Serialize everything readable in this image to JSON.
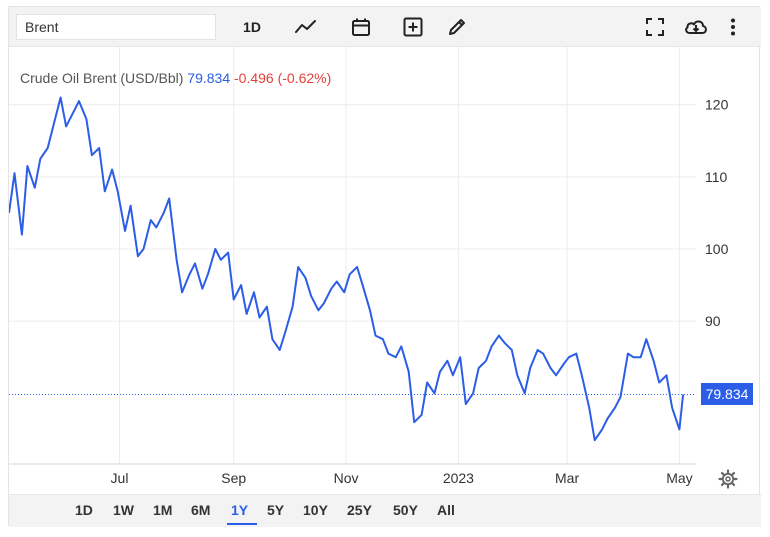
{
  "toolbar": {
    "search_value": "Brent",
    "interval_label": "1D",
    "icons": [
      "line-chart-icon",
      "calendar-icon",
      "add-indicator-icon",
      "pencil-icon",
      "fullscreen-icon",
      "download-icon",
      "more-vertical-icon"
    ]
  },
  "legend": {
    "name": "Crude Oil Brent (USD/Bbl)",
    "price": "79.834",
    "change": "-0.496 (-0.62%)"
  },
  "price_tag": "79.834",
  "range_selector": {
    "options": [
      "1D",
      "1W",
      "1M",
      "6M",
      "1Y",
      "5Y",
      "10Y",
      "25Y",
      "50Y",
      "All"
    ],
    "active": "1Y"
  },
  "colors": {
    "line": "#2b5de6",
    "negative": "#e0423b",
    "grid": "#ececec"
  },
  "chart_data": {
    "type": "line",
    "title": "Crude Oil Brent (USD/Bbl)",
    "xlabel": "",
    "ylabel": "",
    "y_ticks": [
      90,
      100,
      110,
      120
    ],
    "x_ticks": [
      {
        "label": "Jul",
        "date": "2022-07-01"
      },
      {
        "label": "Sep",
        "date": "2022-09-01"
      },
      {
        "label": "Nov",
        "date": "2022-11-01"
      },
      {
        "label": "2023",
        "date": "2023-01-01"
      },
      {
        "label": "Mar",
        "date": "2023-03-01"
      },
      {
        "label": "May",
        "date": "2023-05-01"
      }
    ],
    "xlim": [
      "2022-05-02",
      "2023-05-10"
    ],
    "ylim": [
      70.2,
      128
    ],
    "grid": true,
    "last_value": 79.834,
    "series": [
      {
        "x": [
          "2022-05-02",
          "2022-05-05",
          "2022-05-09",
          "2022-05-12",
          "2022-05-16",
          "2022-05-19",
          "2022-05-23",
          "2022-05-26",
          "2022-05-30",
          "2022-06-02",
          "2022-06-06",
          "2022-06-09",
          "2022-06-13",
          "2022-06-16",
          "2022-06-20",
          "2022-06-23",
          "2022-06-27",
          "2022-06-30",
          "2022-07-04",
          "2022-07-07",
          "2022-07-11",
          "2022-07-14",
          "2022-07-18",
          "2022-07-21",
          "2022-07-25",
          "2022-07-28",
          "2022-08-01",
          "2022-08-04",
          "2022-08-08",
          "2022-08-11",
          "2022-08-15",
          "2022-08-18",
          "2022-08-22",
          "2022-08-25",
          "2022-08-29",
          "2022-09-01",
          "2022-09-05",
          "2022-09-08",
          "2022-09-12",
          "2022-09-15",
          "2022-09-19",
          "2022-09-22",
          "2022-09-26",
          "2022-09-29",
          "2022-10-03",
          "2022-10-06",
          "2022-10-10",
          "2022-10-13",
          "2022-10-17",
          "2022-10-20",
          "2022-10-24",
          "2022-10-27",
          "2022-10-31",
          "2022-11-03",
          "2022-11-07",
          "2022-11-10",
          "2022-11-14",
          "2022-11-17",
          "2022-11-21",
          "2022-11-24",
          "2022-11-28",
          "2022-12-01",
          "2022-12-05",
          "2022-12-08",
          "2022-12-12",
          "2022-12-15",
          "2022-12-19",
          "2022-12-22",
          "2022-12-26",
          "2022-12-29",
          "2023-01-02",
          "2023-01-05",
          "2023-01-09",
          "2023-01-12",
          "2023-01-16",
          "2023-01-19",
          "2023-01-23",
          "2023-01-26",
          "2023-01-30",
          "2023-02-02",
          "2023-02-06",
          "2023-02-09",
          "2023-02-13",
          "2023-02-16",
          "2023-02-20",
          "2023-02-23",
          "2023-02-27",
          "2023-03-02",
          "2023-03-06",
          "2023-03-09",
          "2023-03-13",
          "2023-03-16",
          "2023-03-20",
          "2023-03-23",
          "2023-03-27",
          "2023-03-30",
          "2023-04-03",
          "2023-04-06",
          "2023-04-10",
          "2023-04-13",
          "2023-04-17",
          "2023-04-20",
          "2023-04-24",
          "2023-04-27",
          "2023-05-01",
          "2023-05-03"
        ],
        "values": [
          105.0,
          110.5,
          102.0,
          111.5,
          108.5,
          112.5,
          114.0,
          117.0,
          121.0,
          117.0,
          119.0,
          120.5,
          118.0,
          113.0,
          114.0,
          108.0,
          111.0,
          108.0,
          102.5,
          106.0,
          99.0,
          100.0,
          104.0,
          103.0,
          105.0,
          107.0,
          98.5,
          94.0,
          96.5,
          98.0,
          94.5,
          96.5,
          100.0,
          98.5,
          99.5,
          93.0,
          95.0,
          91.0,
          94.0,
          90.5,
          92.0,
          87.5,
          86.0,
          88.5,
          92.0,
          97.5,
          96.0,
          93.5,
          91.5,
          92.5,
          94.5,
          95.5,
          94.0,
          96.5,
          97.5,
          95.0,
          91.5,
          88.0,
          87.5,
          85.5,
          85.0,
          86.5,
          83.0,
          76.0,
          77.0,
          81.5,
          80.0,
          83.0,
          84.5,
          82.5,
          85.0,
          78.5,
          80.0,
          83.5,
          84.5,
          86.5,
          88.0,
          87.0,
          86.0,
          82.5,
          80.0,
          83.5,
          86.0,
          85.5,
          83.5,
          82.5,
          84.0,
          85.0,
          85.5,
          82.5,
          78.0,
          73.5,
          75.0,
          76.5,
          78.0,
          79.5,
          85.5,
          85.0,
          85.0,
          87.5,
          84.5,
          81.5,
          82.5,
          78.0,
          75.0,
          79.834
        ]
      }
    ]
  }
}
